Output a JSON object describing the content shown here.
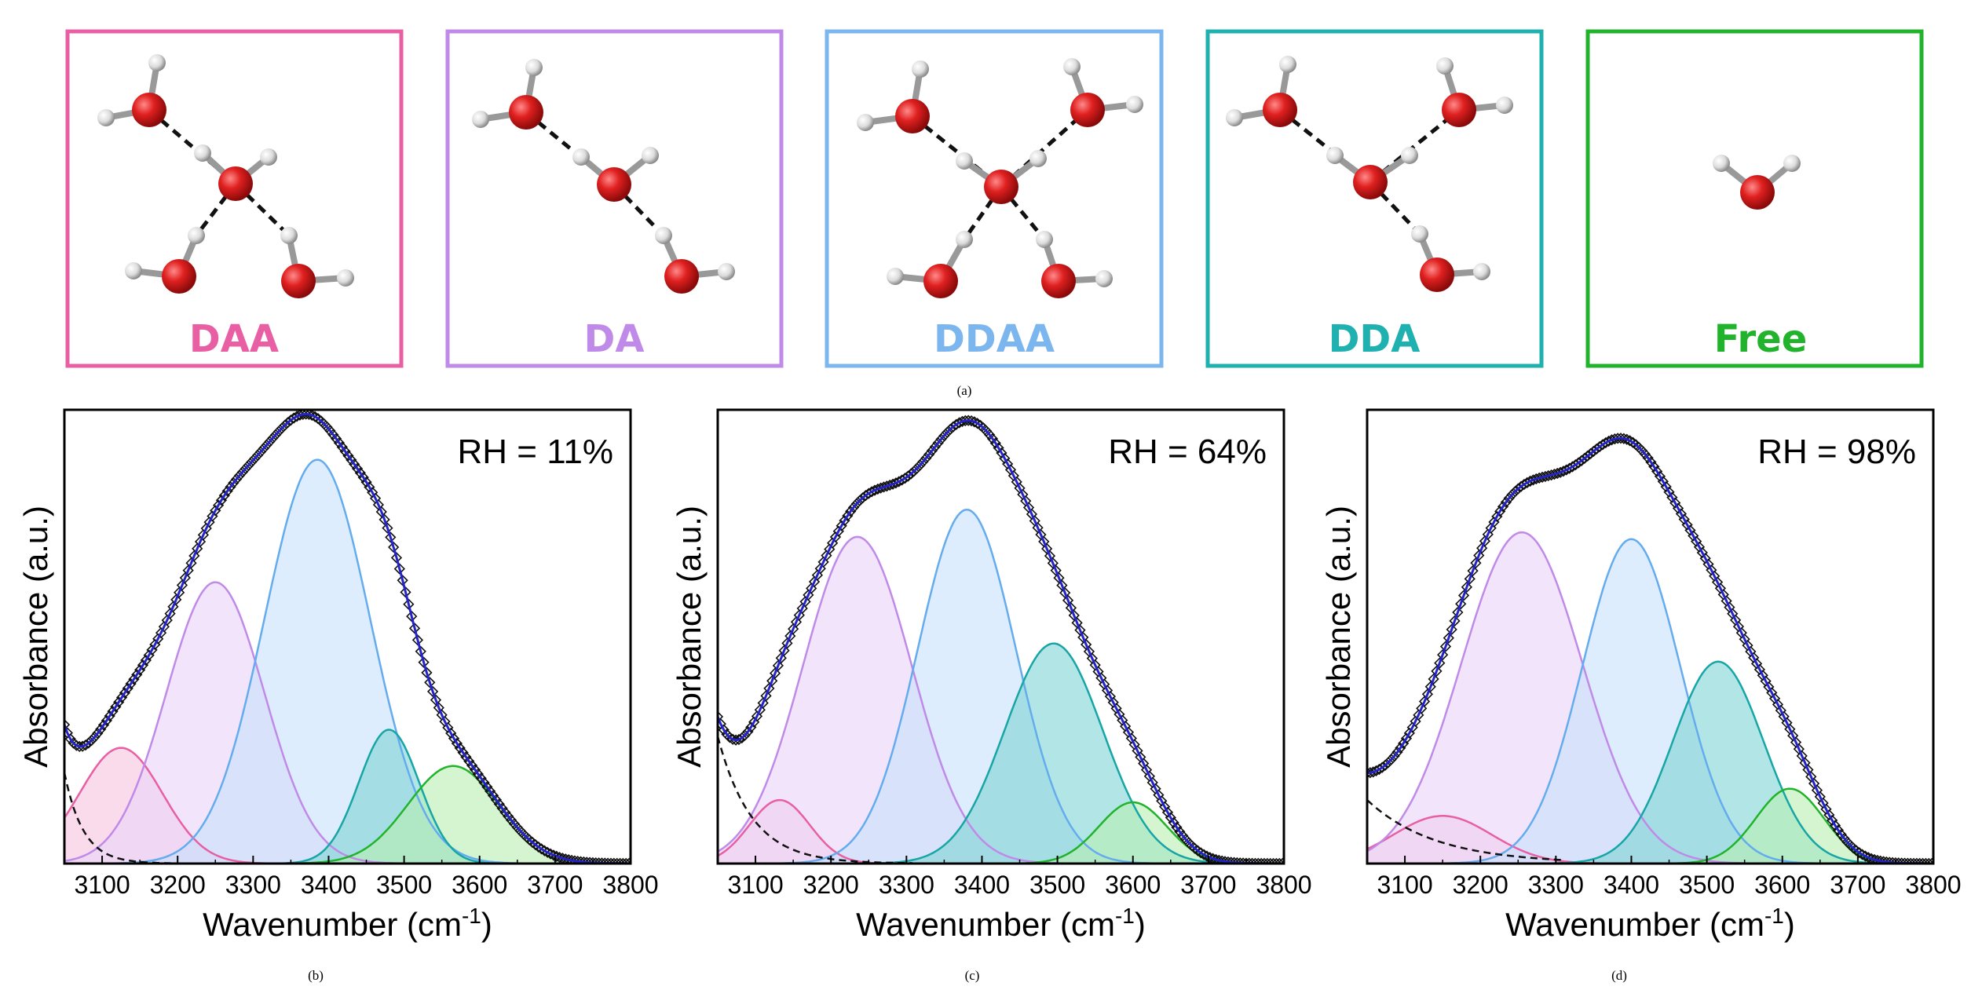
{
  "panel_a": {
    "caption": "(a)",
    "boxes": [
      {
        "label": "DAA",
        "color": "#e85fa4"
      },
      {
        "label": "DA",
        "color": "#c08ae8"
      },
      {
        "label": "DDAA",
        "color": "#7cb6ee"
      },
      {
        "label": "DDA",
        "color": "#1fb0b0"
      },
      {
        "label": "Free",
        "color": "#22b32c"
      }
    ]
  },
  "component_colors": {
    "DAA": {
      "stroke": "#e85fa4",
      "fill": "#f7c3df"
    },
    "DA": {
      "stroke": "#c08ae8",
      "fill": "#e9d3f8"
    },
    "DDAA": {
      "stroke": "#64acee",
      "fill": "#c6e1fb"
    },
    "DDA": {
      "stroke": "#17a5a5",
      "fill": "#7fd3d3"
    },
    "Free": {
      "stroke": "#22b32c",
      "fill": "#b9efb3"
    },
    "fit_line": "#2323c8"
  },
  "chart_data": [
    {
      "type": "line",
      "caption": "(b)",
      "annotation": "RH = 11%",
      "xlabel": "Wavenumber (cm",
      "xlabel_sup": "-1",
      "xlabel_close": ")",
      "ylabel": "Absorbance (a.u.)",
      "xlim": [
        3050,
        3800
      ],
      "ylim": [
        0,
        1.0
      ],
      "xticks": [
        3100,
        3200,
        3300,
        3400,
        3500,
        3600,
        3700,
        3800
      ],
      "baseline": {
        "start": 0.2,
        "decay": 25
      },
      "components": [
        {
          "name": "DAA",
          "center": 3125,
          "height": 0.255,
          "sigma": 55
        },
        {
          "name": "DA",
          "center": 3250,
          "height": 0.62,
          "sigma": 65
        },
        {
          "name": "DDAA",
          "center": 3385,
          "height": 0.89,
          "sigma": 70
        },
        {
          "name": "DDA",
          "center": 3480,
          "height": 0.295,
          "sigma": 40
        },
        {
          "name": "Free",
          "center": 3565,
          "height": 0.215,
          "sigma": 60
        }
      ]
    },
    {
      "type": "line",
      "caption": "(c)",
      "annotation": "RH = 64%",
      "xlabel": "Wavenumber (cm",
      "xlabel_sup": "-1",
      "xlabel_close": ")",
      "ylabel": "Absorbance (a.u.)",
      "xlim": [
        3050,
        3800
      ],
      "ylim": [
        0,
        1.0
      ],
      "xticks": [
        3100,
        3200,
        3300,
        3400,
        3500,
        3600,
        3700,
        3800
      ],
      "baseline": {
        "start": 0.28,
        "decay": 45
      },
      "components": [
        {
          "name": "DAA",
          "center": 3132,
          "height": 0.14,
          "sigma": 40
        },
        {
          "name": "DA",
          "center": 3235,
          "height": 0.72,
          "sigma": 72
        },
        {
          "name": "DDAA",
          "center": 3380,
          "height": 0.78,
          "sigma": 65
        },
        {
          "name": "DDA",
          "center": 3495,
          "height": 0.485,
          "sigma": 65
        },
        {
          "name": "Free",
          "center": 3600,
          "height": 0.135,
          "sigma": 45
        }
      ]
    },
    {
      "type": "line",
      "caption": "(d)",
      "annotation": "RH = 98%",
      "xlabel": "Wavenumber (cm",
      "xlabel_sup": "-1",
      "xlabel_close": ")",
      "ylabel": "Absorbance (a.u.)",
      "xlim": [
        3050,
        3800
      ],
      "ylim": [
        0,
        1.0
      ],
      "xticks": [
        3100,
        3200,
        3300,
        3400,
        3500,
        3600,
        3700,
        3800
      ],
      "baseline": {
        "start": 0.14,
        "decay": 90
      },
      "components": [
        {
          "name": "DAA",
          "center": 3150,
          "height": 0.105,
          "sigma": 65
        },
        {
          "name": "DA",
          "center": 3255,
          "height": 0.73,
          "sigma": 80
        },
        {
          "name": "DDAA",
          "center": 3400,
          "height": 0.715,
          "sigma": 65
        },
        {
          "name": "DDA",
          "center": 3515,
          "height": 0.445,
          "sigma": 60
        },
        {
          "name": "Free",
          "center": 3610,
          "height": 0.165,
          "sigma": 45
        }
      ]
    }
  ]
}
